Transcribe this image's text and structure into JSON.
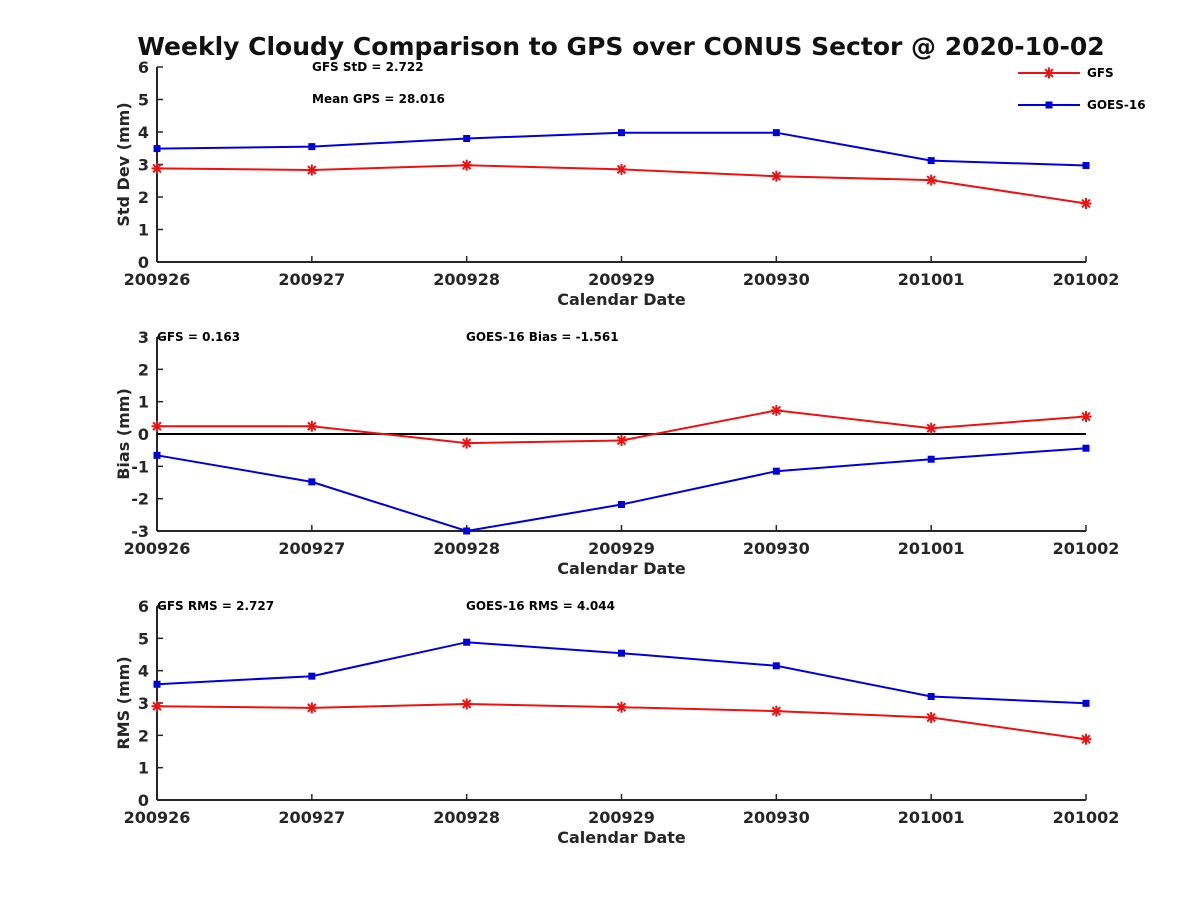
{
  "title": "Weekly Cloudy Comparison to GPS over CONUS Sector @ 2020-10-02",
  "colors": {
    "gfs": "#ee1111",
    "goes": "#0000dd",
    "zero_line": "#000000",
    "axis": "#262626"
  },
  "legend": {
    "placement": "top-right",
    "entries": [
      {
        "name": "GFS",
        "color": "#ee1111",
        "marker": "asterisk"
      },
      {
        "name": "GOES-16",
        "color": "#0000dd",
        "marker": "square"
      }
    ]
  },
  "chart_data": [
    {
      "type": "line",
      "xlabel": "Calendar Date",
      "ylabel": "Std Dev (mm)",
      "categories": [
        "200926",
        "200927",
        "200928",
        "200929",
        "200930",
        "201001",
        "201002"
      ],
      "ylim": [
        0,
        6
      ],
      "yticks": [
        "0",
        "1",
        "2",
        "3",
        "4",
        "5",
        "6"
      ],
      "annotations": [
        "GFS StD = 2.722",
        "Mean GPS = 28.016"
      ],
      "series": [
        {
          "name": "GFS",
          "values": [
            2.88,
            2.83,
            2.98,
            2.85,
            2.64,
            2.52,
            1.8
          ]
        },
        {
          "name": "GOES-16",
          "values": [
            3.49,
            3.55,
            3.8,
            3.98,
            3.98,
            3.12,
            2.97
          ]
        }
      ]
    },
    {
      "type": "line",
      "xlabel": "Calendar Date",
      "ylabel": "Bias (mm)",
      "categories": [
        "200926",
        "200927",
        "200928",
        "200929",
        "200930",
        "201001",
        "201002"
      ],
      "ylim": [
        -3,
        3
      ],
      "yticks": [
        "-3",
        "-2",
        "-1",
        "0",
        "1",
        "2",
        "3"
      ],
      "zero_line": 0,
      "annotations": [
        "GFS = 0.163",
        "GOES-16 Bias  = -1.561"
      ],
      "series": [
        {
          "name": "GFS",
          "values": [
            0.24,
            0.24,
            -0.28,
            -0.2,
            0.73,
            0.18,
            0.54
          ]
        },
        {
          "name": "GOES-16",
          "values": [
            -0.66,
            -1.48,
            -3.0,
            -2.18,
            -1.15,
            -0.78,
            -0.44
          ]
        }
      ]
    },
    {
      "type": "line",
      "xlabel": "Calendar Date",
      "ylabel": "RMS (mm)",
      "categories": [
        "200926",
        "200927",
        "200928",
        "200929",
        "200930",
        "201001",
        "201002"
      ],
      "ylim": [
        0,
        6
      ],
      "yticks": [
        "0",
        "1",
        "2",
        "3",
        "4",
        "5",
        "6"
      ],
      "annotations": [
        "GFS RMS = 2.727",
        "GOES-16 RMS = 4.044"
      ],
      "series": [
        {
          "name": "GFS",
          "values": [
            2.9,
            2.85,
            2.97,
            2.87,
            2.75,
            2.55,
            1.88
          ]
        },
        {
          "name": "GOES-16",
          "values": [
            3.58,
            3.83,
            4.88,
            4.54,
            4.15,
            3.2,
            2.99
          ]
        }
      ]
    }
  ]
}
